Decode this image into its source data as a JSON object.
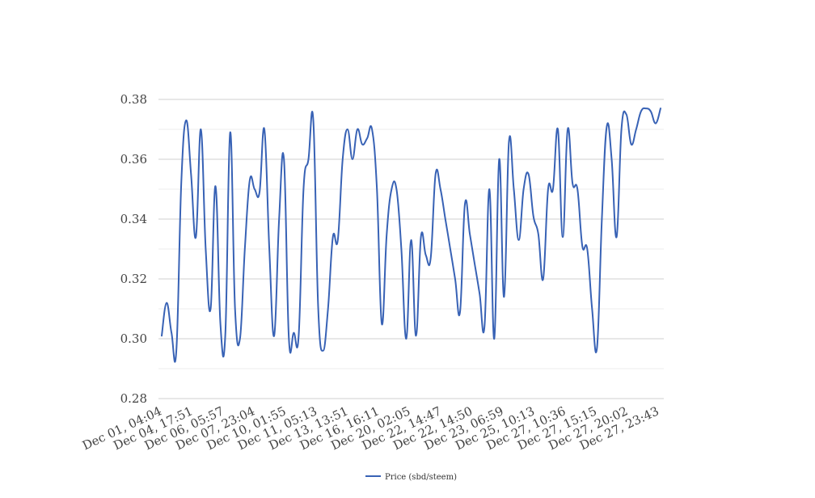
{
  "chart_data": {
    "type": "line",
    "ylim": [
      0.28,
      0.38
    ],
    "y_ticks": [
      "0.28",
      "0.30",
      "0.32",
      "0.34",
      "0.36",
      "0.38"
    ],
    "y_tick_values": [
      0.28,
      0.3,
      0.32,
      0.34,
      0.36,
      0.38
    ],
    "minor_grid": true,
    "grid": true,
    "legend_position": "bottom-center",
    "line_smooth": true,
    "x_tick_labels": [
      "Dec 01, 04:04",
      "Dec 04, 17:51",
      "Dec 06, 05:57",
      "Dec 07, 23:04",
      "Dec 10, 01:55",
      "Dec 11, 05:13",
      "Dec 13, 13:51",
      "Dec 16, 16:11",
      "Dec 20, 02:05",
      "Dec 22, 14:47",
      "Dec 22, 14:50",
      "Dec 23, 06:59",
      "Dec 25, 10:13",
      "Dec 27, 10:36",
      "Dec 27, 15:15",
      "Dec 27, 20:02",
      "Dec 27, 23:43"
    ],
    "series": [
      {
        "name": "Price (sbd/steem)",
        "color": "#3862b5",
        "values": [
          0.301,
          0.312,
          0.302,
          0.296,
          0.352,
          0.373,
          0.355,
          0.334,
          0.37,
          0.33,
          0.31,
          0.351,
          0.305,
          0.301,
          0.369,
          0.31,
          0.3,
          0.33,
          0.353,
          0.35,
          0.349,
          0.37,
          0.33,
          0.301,
          0.34,
          0.36,
          0.3,
          0.302,
          0.301,
          0.35,
          0.36,
          0.373,
          0.31,
          0.296,
          0.31,
          0.334,
          0.333,
          0.36,
          0.37,
          0.36,
          0.37,
          0.365,
          0.367,
          0.37,
          0.35,
          0.305,
          0.335,
          0.35,
          0.35,
          0.33,
          0.3,
          0.333,
          0.301,
          0.334,
          0.328,
          0.327,
          0.355,
          0.35,
          0.34,
          0.33,
          0.32,
          0.309,
          0.345,
          0.335,
          0.325,
          0.315,
          0.304,
          0.35,
          0.3,
          0.36,
          0.314,
          0.366,
          0.35,
          0.333,
          0.35,
          0.355,
          0.341,
          0.335,
          0.32,
          0.35,
          0.35,
          0.37,
          0.334,
          0.37,
          0.352,
          0.35,
          0.331,
          0.33,
          0.31,
          0.297,
          0.34,
          0.371,
          0.36,
          0.334,
          0.37,
          0.375,
          0.365,
          0.37,
          0.376,
          0.377,
          0.376,
          0.372,
          0.377
        ]
      }
    ]
  }
}
